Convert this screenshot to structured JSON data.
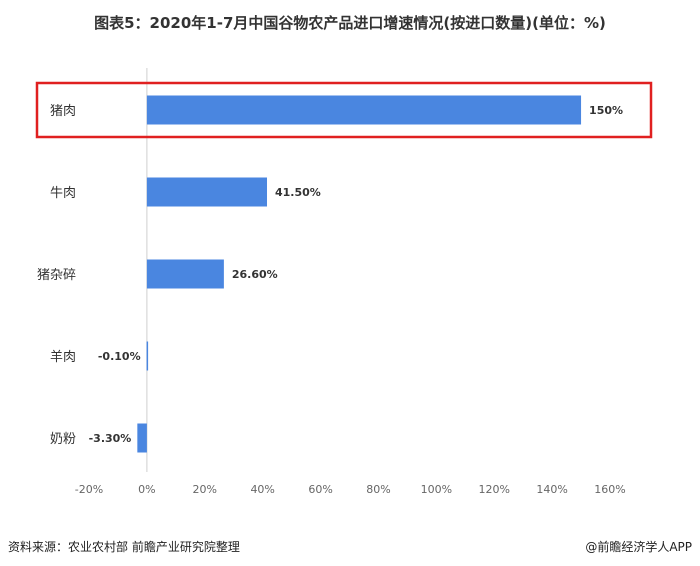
{
  "header": {
    "title": "图表5：2020年1-7月中国谷物农产品进口增速情况(按进口数量)(单位：%)"
  },
  "footer": {
    "source": "资料来源：农业农村部   前瞻产业研究院整理",
    "brand": "@前瞻经济学人APP"
  },
  "colors": {
    "bar": "#4a86e0",
    "highlight_border": "#e02020",
    "axis": "#d0d0d0",
    "tick_text": "#666666",
    "label_text": "#333333"
  },
  "chart_data": {
    "type": "bar",
    "orientation": "horizontal",
    "title": "图表5：2020年1-7月中国谷物农产品进口增速情况(按进口数量)(单位：%)",
    "categories": [
      "猪肉",
      "牛肉",
      "猪杂碎",
      "羊肉",
      "奶粉"
    ],
    "values": [
      150,
      41.5,
      26.6,
      -0.1,
      -3.3
    ],
    "data_labels": [
      "150%",
      "41.50%",
      "26.60%",
      "-0.10%",
      "-3.30%"
    ],
    "xlim": [
      -20,
      160
    ],
    "xticks": [
      -20,
      0,
      20,
      40,
      60,
      80,
      100,
      120,
      140,
      160
    ],
    "xtick_labels": [
      "-20%",
      "0%",
      "20%",
      "40%",
      "60%",
      "80%",
      "100%",
      "120%",
      "140%",
      "160%"
    ],
    "grid": false,
    "highlighted_category": "猪肉"
  }
}
